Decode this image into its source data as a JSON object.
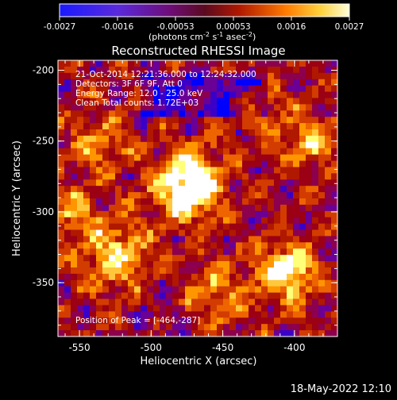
{
  "colorbar": {
    "ticks": [
      "-0.0027",
      "-0.0016",
      "-0.00053",
      "0.00053",
      "0.0016",
      "0.0027"
    ],
    "unit_main": "(photons cm",
    "unit_exp1": "-2",
    "unit_mid": " s",
    "unit_exp2": "-1",
    "unit_mid2": " asec",
    "unit_exp3": "-2",
    "unit_end": ")"
  },
  "title": "Reconstructed RHESSI Image",
  "info": {
    "line1": "21-Oct-2014 12:21:36.000 to 12:24:32.000",
    "line2": "Detectors: 3F 6F 9F, Att 0",
    "line3": "Energy Range: 12.0 - 25.0 keV",
    "line4": "Clean     Total counts: 1.72E+03"
  },
  "peak_text": "Position of Peak = [-464,-287]",
  "axes": {
    "xlabel": "Heliocentric X (arcsec)",
    "ylabel": "Heliocentric Y (arcsec)",
    "x_ticks": [
      "-550",
      "-500",
      "-450",
      "-400"
    ],
    "y_ticks": [
      "-200",
      "-250",
      "-300",
      "-350"
    ],
    "xlim": [
      -565,
      -370
    ],
    "ylim": [
      -388,
      -193
    ]
  },
  "timestamp": "18-May-2022 12:10",
  "colors": {
    "colormap": [
      "#0000ff",
      "#3a00c8",
      "#6a0096",
      "#8c004e",
      "#9b0014",
      "#b01800",
      "#d23c00",
      "#ee6400",
      "#ff9600",
      "#ffc83c",
      "#ffff78",
      "#ffffff"
    ]
  }
}
